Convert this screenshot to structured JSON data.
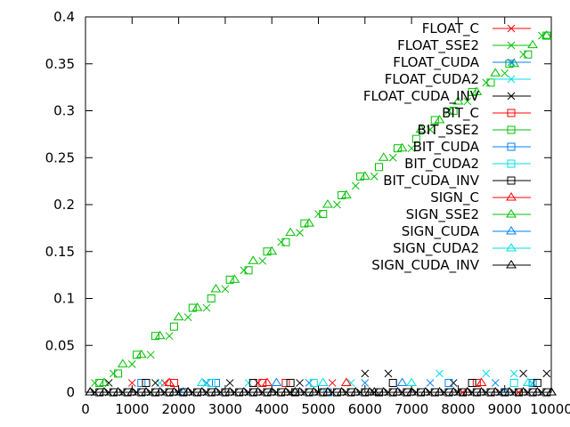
{
  "chart_data": {
    "type": "scatter",
    "title": "",
    "xlabel": "",
    "ylabel": "",
    "xlim": [
      0,
      10000
    ],
    "ylim": [
      0,
      0.4
    ],
    "x_ticks": [
      "0",
      "1000",
      "2000",
      "3000",
      "4000",
      "5000",
      "6000",
      "7000",
      "8000",
      "9000",
      "10000"
    ],
    "y_ticks": [
      "0",
      "0.05",
      "0.1",
      "0.15",
      "0.2",
      "0.25",
      "0.3",
      "0.35",
      "0.4"
    ],
    "grid": false,
    "legend_position": "top-right",
    "series": [
      {
        "name": "FLOAT_C",
        "color": "#ff0000",
        "marker": "x",
        "x": [
          1000,
          1700,
          3700,
          5300,
          8100,
          9300
        ],
        "y": [
          0.01,
          0.01,
          0.01,
          0.01,
          0,
          0
        ]
      },
      {
        "name": "FLOAT_SSE2",
        "color": "#00c000",
        "marker": "x",
        "x": [
          200,
          600,
          1000,
          1400,
          1800,
          2200,
          2600,
          3000,
          3400,
          3800,
          4200,
          4600,
          5000,
          5400,
          5800,
          6200,
          6600,
          7000,
          7400,
          7800,
          8200,
          8600,
          9000,
          9400,
          9800
        ],
        "y": [
          0.01,
          0.02,
          0.03,
          0.04,
          0.06,
          0.08,
          0.09,
          0.11,
          0.13,
          0.14,
          0.16,
          0.17,
          0.19,
          0.2,
          0.22,
          0.23,
          0.25,
          0.26,
          0.28,
          0.3,
          0.31,
          0.33,
          0.34,
          0.36,
          0.38
        ]
      },
      {
        "name": "FLOAT_CUDA",
        "color": "#0080ff",
        "marker": "x",
        "x": [
          2600,
          4800,
          6000,
          7400,
          8800
        ],
        "y": [
          0.01,
          0.01,
          0.01,
          0.01,
          0.01
        ]
      },
      {
        "name": "FLOAT_CUDA2",
        "color": "#00e0e0",
        "marker": "x",
        "x": [
          1600,
          3500,
          5700,
          7600,
          8600,
          9200,
          9600
        ],
        "y": [
          0.01,
          0.01,
          0.01,
          0.02,
          0.02,
          0.02,
          0.01
        ]
      },
      {
        "name": "FLOAT_CUDA_INV",
        "color": "#000000",
        "marker": "x",
        "x": [
          500,
          1500,
          3100,
          4600,
          6000,
          6500,
          7900,
          9400,
          9900
        ],
        "y": [
          0.01,
          0.01,
          0.01,
          0.01,
          0.02,
          0.02,
          0.01,
          0.02,
          0.02
        ]
      },
      {
        "name": "BIT_C",
        "color": "#ff0000",
        "marker": "square",
        "x": [
          1900,
          3800,
          4300,
          6900,
          8400
        ],
        "y": [
          0.01,
          0.01,
          0.01,
          0,
          0.01
        ]
      },
      {
        "name": "BIT_SSE2",
        "color": "#00c000",
        "marker": "square",
        "x": [
          300,
          700,
          1100,
          1500,
          1900,
          2300,
          2700,
          3100,
          3500,
          3900,
          4300,
          4700,
          5100,
          5500,
          5900,
          6300,
          6700,
          7100,
          7500,
          7900,
          8300,
          8700,
          9100,
          9500,
          9900
        ],
        "y": [
          0.01,
          0.02,
          0.04,
          0.06,
          0.07,
          0.09,
          0.1,
          0.12,
          0.13,
          0.15,
          0.16,
          0.18,
          0.19,
          0.21,
          0.23,
          0.24,
          0.26,
          0.27,
          0.29,
          0.3,
          0.32,
          0.33,
          0.35,
          0.36,
          0.38
        ]
      },
      {
        "name": "BIT_CUDA",
        "color": "#0080ff",
        "marker": "square",
        "x": [
          1200,
          2800,
          5200,
          7800,
          9600
        ],
        "y": [
          0.01,
          0.01,
          0,
          0.01,
          0.01
        ]
      },
      {
        "name": "BIT_CUDA2",
        "color": "#00e0e0",
        "marker": "square",
        "x": [
          900,
          2700,
          4900,
          7200,
          9200
        ],
        "y": [
          0,
          0.01,
          0.01,
          0,
          0.01
        ]
      },
      {
        "name": "BIT_CUDA_INV",
        "color": "#000000",
        "marker": "square",
        "x": [
          1300,
          3600,
          4400,
          6600,
          8300,
          9700
        ],
        "y": [
          0.01,
          0.01,
          0.01,
          0.01,
          0.01,
          0.01
        ]
      },
      {
        "name": "SIGN_C",
        "color": "#ff0000",
        "marker": "triangle",
        "x": [
          1800,
          3900,
          5600,
          8500
        ],
        "y": [
          0.01,
          0.01,
          0.01,
          0.01
        ]
      },
      {
        "name": "SIGN_SSE2",
        "color": "#00c000",
        "marker": "triangle",
        "x": [
          400,
          800,
          1200,
          1600,
          2000,
          2400,
          2800,
          3200,
          3600,
          4000,
          4400,
          4800,
          5200,
          5600,
          6000,
          6400,
          6800,
          7200,
          7600,
          8000,
          8400,
          8800,
          9200,
          9600,
          9900
        ],
        "y": [
          0.01,
          0.03,
          0.04,
          0.06,
          0.08,
          0.09,
          0.11,
          0.12,
          0.14,
          0.15,
          0.17,
          0.18,
          0.2,
          0.21,
          0.23,
          0.25,
          0.26,
          0.28,
          0.29,
          0.31,
          0.32,
          0.34,
          0.35,
          0.37,
          0.38
        ]
      },
      {
        "name": "SIGN_CUDA",
        "color": "#0080ff",
        "marker": "triangle",
        "x": [
          2100,
          4100,
          6800,
          9000
        ],
        "y": [
          0,
          0.01,
          0.01,
          0
        ]
      },
      {
        "name": "SIGN_CUDA2",
        "color": "#00e0e0",
        "marker": "triangle",
        "x": [
          2500,
          5100,
          7000,
          9500
        ],
        "y": [
          0.01,
          0.01,
          0.01,
          0.01
        ]
      },
      {
        "name": "SIGN_CUDA_INV",
        "color": "#000000",
        "marker": "triangle",
        "x": [
          100,
          2200,
          4500,
          6200,
          8200,
          10000
        ],
        "y": [
          0,
          0,
          0,
          0,
          0,
          0
        ]
      }
    ]
  }
}
